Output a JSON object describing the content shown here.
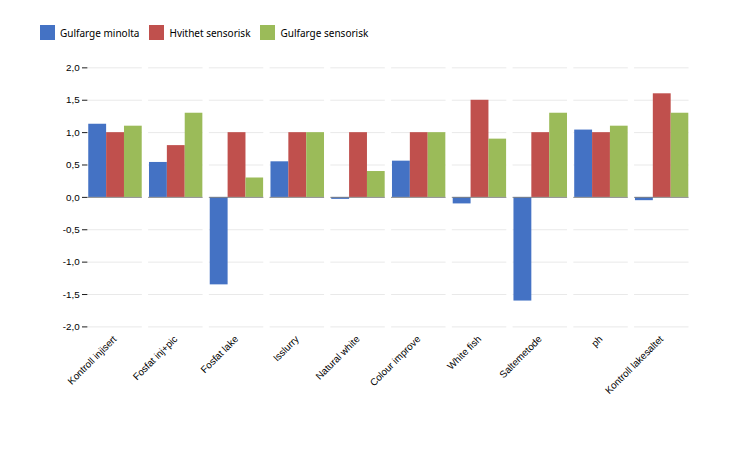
{
  "chart_data": {
    "type": "bar",
    "categories": [
      "Kontroll injisert",
      "Fosfat inj+pic",
      "Fosfat lake",
      "Isslurry",
      "Natural white",
      "Colour improve",
      "White fish",
      "Saltemetode",
      "ph",
      "Kontroll lakesaltet"
    ],
    "series": [
      {
        "name": "Gulfarge minolta",
        "color": "#4472C4",
        "values": [
          1.13,
          0.54,
          -1.35,
          0.55,
          -0.03,
          0.56,
          -0.1,
          -1.6,
          1.04,
          -0.05
        ]
      },
      {
        "name": "Hvithet sensorisk",
        "color": "#C0504D",
        "values": [
          1.0,
          0.8,
          1.0,
          1.0,
          1.0,
          1.0,
          1.5,
          1.0,
          1.0,
          1.6
        ]
      },
      {
        "name": "Gulfarge sensorisk",
        "color": "#9BBB59",
        "values": [
          1.1,
          1.3,
          0.3,
          1.0,
          0.4,
          1.0,
          0.9,
          1.3,
          1.1,
          1.3
        ]
      }
    ],
    "ylim": [
      -2.0,
      2.0
    ],
    "yticks": [
      {
        "value": -2.0,
        "label": "-2,0"
      },
      {
        "value": -1.5,
        "label": "-1,5"
      },
      {
        "value": -1.0,
        "label": "-1,0"
      },
      {
        "value": -0.5,
        "label": "-0,5"
      },
      {
        "value": 0.0,
        "label": "0,0"
      },
      {
        "value": 0.5,
        "label": "0,5"
      },
      {
        "value": 1.0,
        "label": "1,0"
      },
      {
        "value": 1.5,
        "label": "1,5"
      },
      {
        "value": 2.0,
        "label": "2,0"
      }
    ],
    "grid": true,
    "legend": "top"
  }
}
